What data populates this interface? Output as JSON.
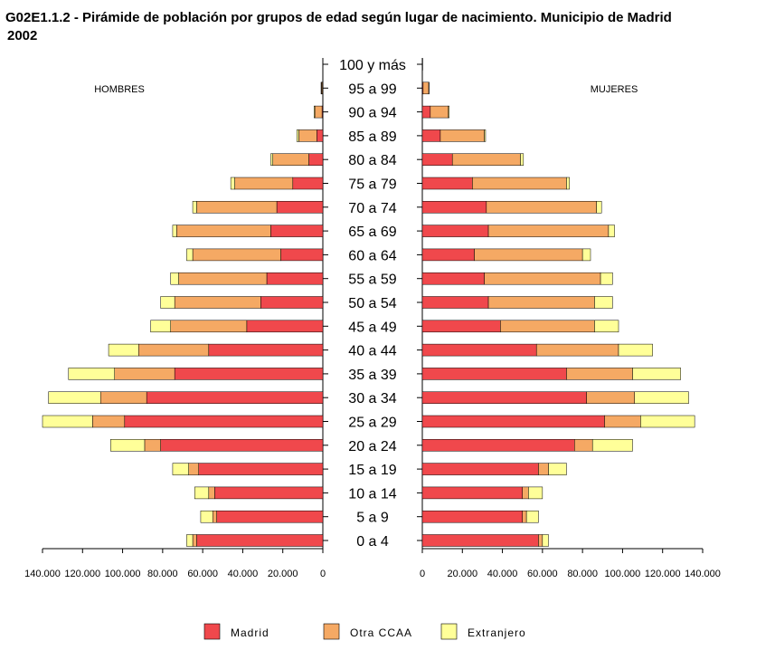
{
  "title": {
    "line1": "G02E1.1.2 - Pirámide de población por grupos de edad según lugar de nacimiento. Municipio de Madrid",
    "line2": "2002"
  },
  "colors": {
    "Madrid": "#f0484c",
    "Otra CCAA": "#f5a964",
    "Extranjero": "#ffff99"
  },
  "chart_data": {
    "type": "bar",
    "orientation": "horizontal-population-pyramid",
    "left_side_label": "HOMBRES",
    "right_side_label": "MUJERES",
    "categories": [
      "100 y más",
      "95 a 99",
      "90 a 94",
      "85 a 89",
      "80 a 84",
      "75 a 79",
      "70 a 74",
      "65 a 69",
      "60 a 64",
      "55 a 59",
      "50 a 54",
      "45 a 49",
      "40 a  44",
      "35 a 39",
      "30 a 34",
      "25 a 29",
      "20 a 24",
      "15 a 19",
      "10 a 14",
      "5 a 9",
      "0 a 4"
    ],
    "xlim": [
      0,
      140000
    ],
    "tick_values": [
      0,
      20000,
      40000,
      60000,
      80000,
      100000,
      120000,
      140000
    ],
    "tick_labels": [
      "0",
      "20.000",
      "40.000",
      "60.000",
      "80.000",
      "100.000",
      "120.000",
      "140.000"
    ],
    "series_names": [
      "Madrid",
      "Otra CCAA",
      "Extranjero"
    ],
    "hombres": [
      {
        "name": "Madrid",
        "values": [
          0,
          200,
          400,
          3000,
          7000,
          15000,
          23000,
          26000,
          21000,
          28000,
          31000,
          38000,
          57000,
          74000,
          88000,
          99000,
          81000,
          62000,
          54000,
          53000,
          63000
        ]
      },
      {
        "name": "Otra CCAA",
        "values": [
          0,
          500,
          3600,
          9000,
          18000,
          29000,
          40000,
          47000,
          44000,
          44000,
          43000,
          38000,
          35000,
          30000,
          23000,
          16000,
          8000,
          5000,
          3000,
          2000,
          2000
        ]
      },
      {
        "name": "Extranjero",
        "values": [
          0,
          200,
          400,
          1000,
          1000,
          2000,
          2000,
          2000,
          3000,
          4000,
          7000,
          10000,
          15000,
          23000,
          26000,
          25000,
          17000,
          8000,
          7000,
          6000,
          3000
        ]
      }
    ],
    "mujeres": [
      {
        "name": "Madrid",
        "values": [
          0,
          400,
          4000,
          9000,
          15000,
          25000,
          32000,
          33000,
          26000,
          31000,
          33000,
          39000,
          57000,
          72000,
          82000,
          91000,
          76000,
          58000,
          50000,
          50000,
          58000
        ]
      },
      {
        "name": "Otra CCAA",
        "values": [
          200,
          2800,
          9000,
          22000,
          34000,
          47000,
          55000,
          60000,
          54000,
          58000,
          53000,
          47000,
          41000,
          33000,
          24000,
          18000,
          9000,
          5000,
          3000,
          2000,
          2000
        ]
      },
      {
        "name": "Extranjero",
        "values": [
          0,
          200,
          400,
          600,
          1500,
          1500,
          2500,
          3000,
          4000,
          6000,
          9000,
          12000,
          17000,
          24000,
          27000,
          27000,
          20000,
          9000,
          7000,
          6000,
          3000
        ]
      }
    ]
  },
  "legend": [
    {
      "label": "Madrid",
      "key": "Madrid"
    },
    {
      "label": "Otra CCAA",
      "key": "Otra CCAA"
    },
    {
      "label": "Extranjero",
      "key": "Extranjero"
    }
  ]
}
